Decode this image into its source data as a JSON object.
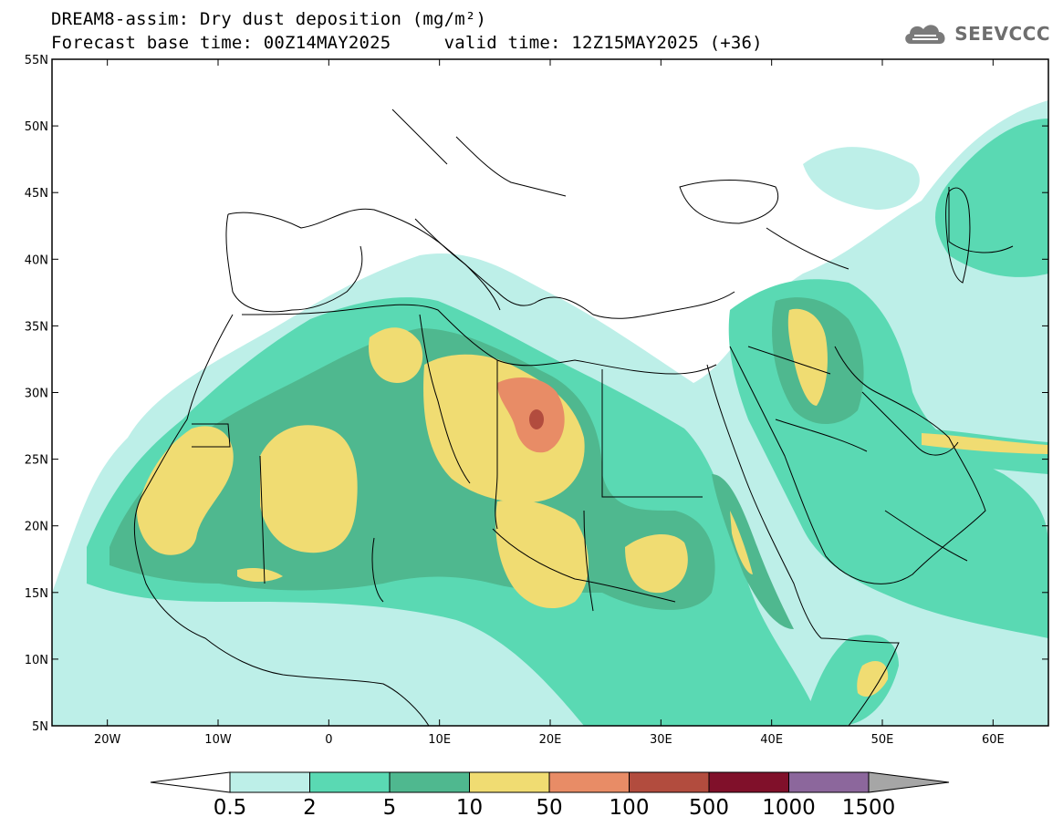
{
  "header": {
    "title_line1": "DREAM8-assim: Dry dust deposition (mg/m²)",
    "title_line2": "Forecast base time: 00Z14MAY2025     valid time: 12Z15MAY2025 (+36)"
  },
  "logo": {
    "text": "SEEVCCC",
    "icon": "cloud-logo-icon"
  },
  "map": {
    "lon_range": [
      -25,
      65
    ],
    "lat_range": [
      5,
      55
    ],
    "lat_ticks": [
      {
        "v": 55,
        "label": "55N"
      },
      {
        "v": 50,
        "label": "50N"
      },
      {
        "v": 45,
        "label": "45N"
      },
      {
        "v": 40,
        "label": "40N"
      },
      {
        "v": 35,
        "label": "35N"
      },
      {
        "v": 30,
        "label": "30N"
      },
      {
        "v": 25,
        "label": "25N"
      },
      {
        "v": 20,
        "label": "20N"
      },
      {
        "v": 15,
        "label": "15N"
      },
      {
        "v": 10,
        "label": "10N"
      },
      {
        "v": 5,
        "label": "5N"
      }
    ],
    "lon_ticks": [
      {
        "v": -20,
        "label": "20W"
      },
      {
        "v": -10,
        "label": "10W"
      },
      {
        "v": 0,
        "label": "0"
      },
      {
        "v": 10,
        "label": "10E"
      },
      {
        "v": 20,
        "label": "20E"
      },
      {
        "v": 30,
        "label": "30E"
      },
      {
        "v": 40,
        "label": "40E"
      },
      {
        "v": 50,
        "label": "50E"
      },
      {
        "v": 60,
        "label": "60E"
      }
    ]
  },
  "colorbar": {
    "labels": [
      "0.5",
      "2",
      "5",
      "10",
      "50",
      "100",
      "500",
      "1000",
      "1500"
    ],
    "colors": [
      "#bdefe8",
      "#5ad9b3",
      "#4fb88f",
      "#f0dc72",
      "#e88c66",
      "#b24c3e",
      "#80102a",
      "#8c679c"
    ],
    "under_color": "#ffffff",
    "over_color": "#a6a6a6"
  }
}
